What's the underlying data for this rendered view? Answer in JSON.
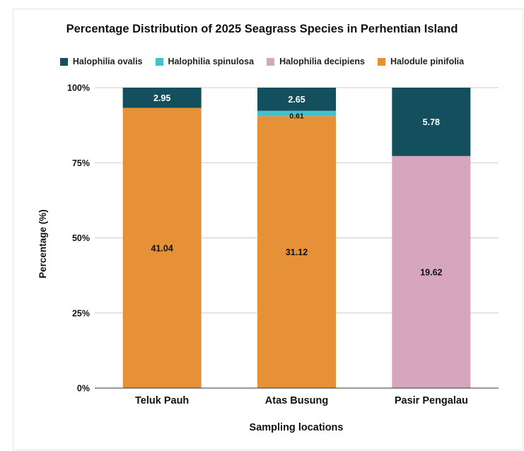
{
  "chart_data": {
    "type": "bar",
    "stacked": "percent",
    "title": "Percentage Distribution of 2025 Seagrass Species in Perhentian Island",
    "xlabel": "Sampling locations",
    "ylabel": "Percentage (%)",
    "categories": [
      "Teluk Pauh",
      "Atas Busung",
      "Pasir Pengalau"
    ],
    "yticks": [
      "0%",
      "25%",
      "50%",
      "75%",
      "100%"
    ],
    "ylim": [
      0,
      1
    ],
    "grid": true,
    "legend_position": "top",
    "series": [
      {
        "name": "Halodule pinifolia",
        "color": "#e69138",
        "values": [
          41.04,
          31.12,
          null
        ]
      },
      {
        "name": "Halophilia decipiens",
        "color": "#d5a6bd",
        "values": [
          null,
          null,
          19.62
        ]
      },
      {
        "name": "Halophilia spinulosa",
        "color": "#45c1c9",
        "values": [
          null,
          0.61,
          null
        ]
      },
      {
        "name": "Halophilia ovalis",
        "color": "#134f5c",
        "values": [
          2.95,
          2.65,
          5.78
        ]
      }
    ],
    "legend_order": [
      "Halophilia ovalis",
      "Halophilia spinulosa",
      "Halophilia decipiens",
      "Halodule pinifolia"
    ],
    "label_colors": {
      "Halophilia ovalis": "#ffffff",
      "Halophilia spinulosa": "#111111",
      "Halophilia decipiens": "#111111",
      "Halodule pinifolia": "#111111"
    }
  }
}
